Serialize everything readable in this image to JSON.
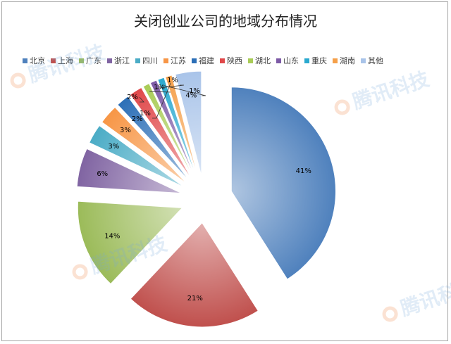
{
  "chart_data": {
    "type": "pie",
    "title": "关闭创业公司的地域分布情况",
    "legend_position": "top",
    "start_angle_deg": 0,
    "direction": "clockwise",
    "exploded": true,
    "labels": [
      "北京",
      "上海",
      "广东",
      "浙江",
      "四川",
      "江苏",
      "福建",
      "陕西",
      "湖北",
      "山东",
      "重庆",
      "湖南",
      "其他"
    ],
    "values": [
      41,
      21,
      14,
      6,
      3,
      3,
      2,
      2,
      1,
      1,
      1,
      1,
      4
    ],
    "value_labels": [
      "41%",
      "21%",
      "14%",
      "6%",
      "3%",
      "3%",
      "2%",
      "2%",
      "1%",
      "1%",
      "1%",
      "1%",
      "4%"
    ],
    "colors": [
      "#4f81bd",
      "#c0504d",
      "#9bbb59",
      "#8064a2",
      "#4bacc6",
      "#f79646",
      "#2c6fb7",
      "#e0484a",
      "#a9cc56",
      "#7d5aa6",
      "#2aa9cf",
      "#f5a04a",
      "#a9c4e9"
    ]
  },
  "watermark": {
    "text": "腾讯科技"
  }
}
